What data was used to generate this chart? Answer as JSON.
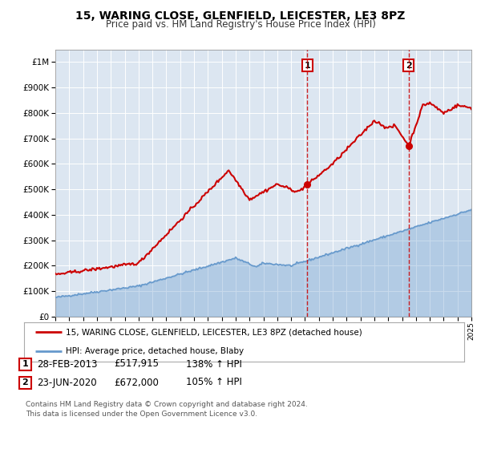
{
  "title": "15, WARING CLOSE, GLENFIELD, LEICESTER, LE3 8PZ",
  "subtitle": "Price paid vs. HM Land Registry's House Price Index (HPI)",
  "legend_line1": "15, WARING CLOSE, GLENFIELD, LEICESTER, LE3 8PZ (detached house)",
  "legend_line2": "HPI: Average price, detached house, Blaby",
  "marker1_date": 2013.16,
  "marker1_label": "1",
  "marker1_price": 517915,
  "marker1_text": "28-FEB-2013",
  "marker1_amount": "£517,915",
  "marker1_hpi": "138% ↑ HPI",
  "marker2_date": 2020.48,
  "marker2_label": "2",
  "marker2_price": 672000,
  "marker2_text": "23-JUN-2020",
  "marker2_amount": "£672,000",
  "marker2_hpi": "105% ↑ HPI",
  "red_color": "#cc0000",
  "blue_color": "#6699cc",
  "vline_color": "#cc0000",
  "plot_bg": "#dce6f1",
  "footer": "Contains HM Land Registry data © Crown copyright and database right 2024.\nThis data is licensed under the Open Government Licence v3.0.",
  "ylim_max": 1050000,
  "xmin": 1995,
  "xmax": 2025
}
